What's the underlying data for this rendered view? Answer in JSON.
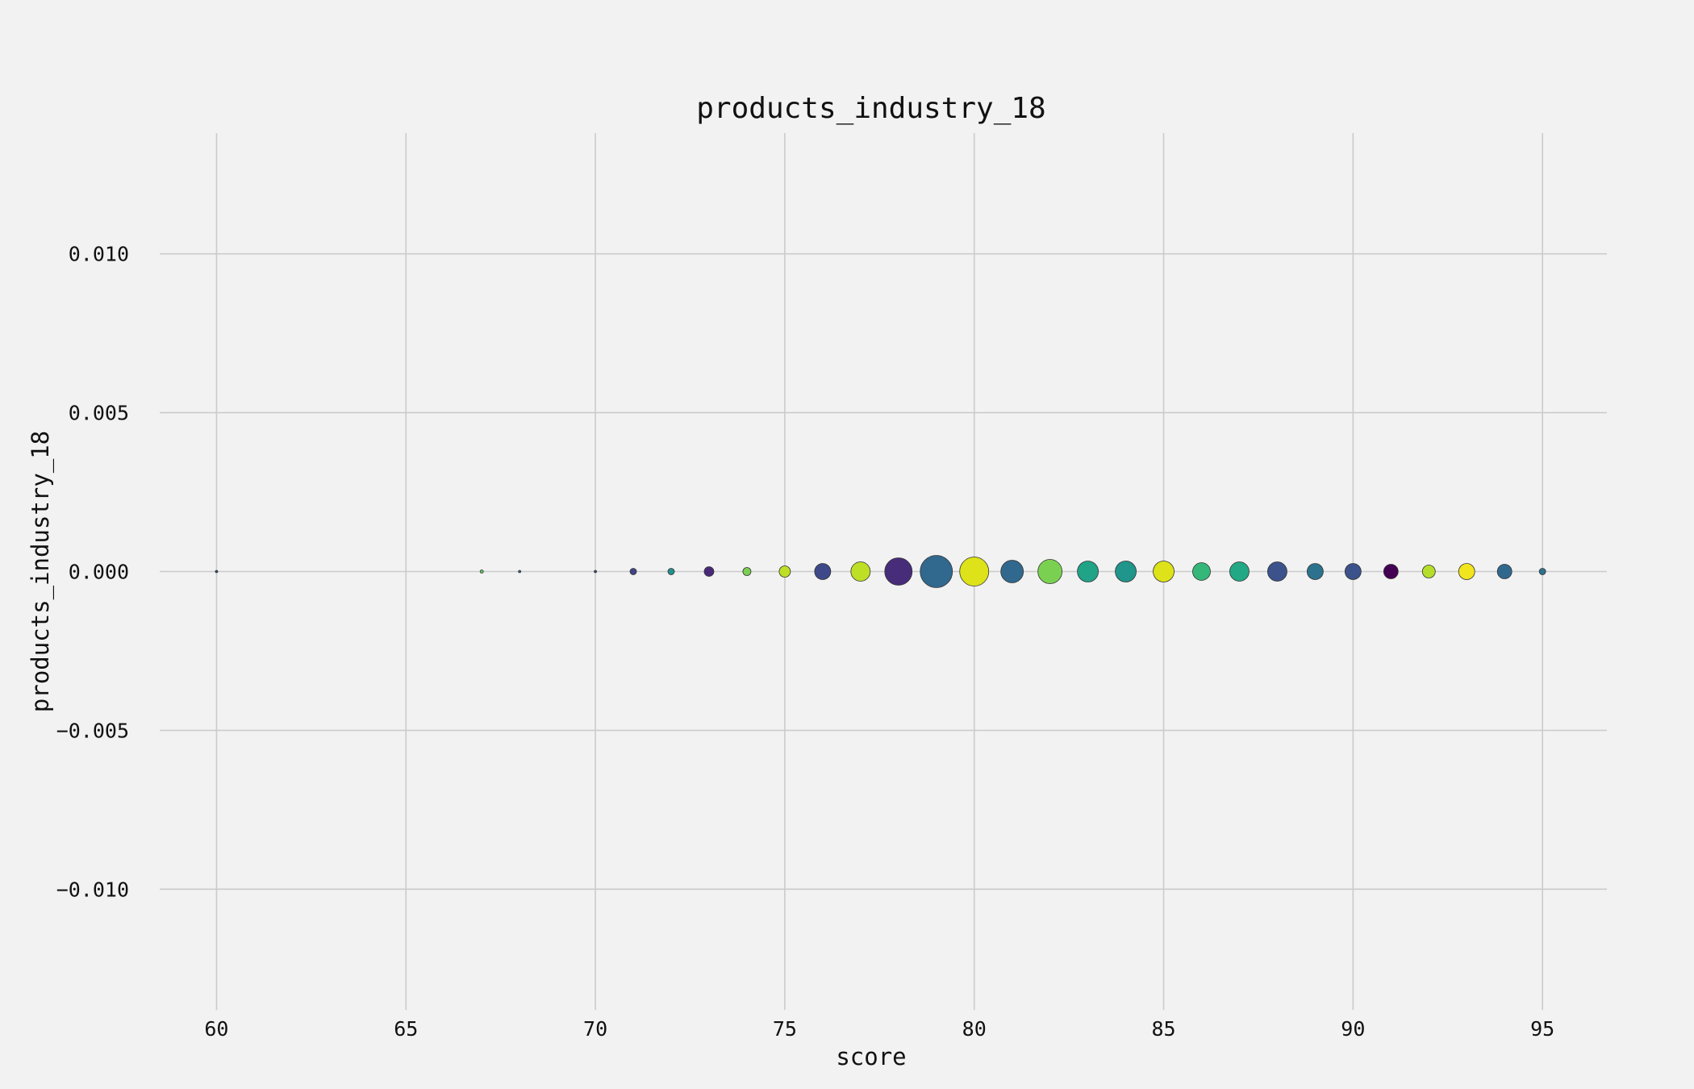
{
  "chart_data": {
    "type": "scatter",
    "title": "products_industry_18",
    "xlabel": "score",
    "ylabel": "products_industry_18",
    "xlim": [
      58.5,
      96.7
    ],
    "ylim": [
      -0.0138,
      0.0138
    ],
    "x_ticks": [
      60,
      65,
      70,
      75,
      80,
      85,
      90,
      95
    ],
    "x_tick_labels": [
      "60",
      "65",
      "70",
      "75",
      "80",
      "85",
      "90",
      "95"
    ],
    "y_ticks": [
      0.01,
      0.005,
      0.0,
      -0.005,
      -0.01
    ],
    "y_tick_labels": [
      "0.010",
      "0.005",
      "0.000",
      "−0.005",
      "−0.010"
    ],
    "grid": true,
    "background_color": "#f2f2f2",
    "colormap": "viridis",
    "series": [
      {
        "points": [
          {
            "x": 60,
            "y": 0,
            "size": 1,
            "color": "#3b528b"
          },
          {
            "x": 67,
            "y": 0,
            "size": 2,
            "color": "#5ec962"
          },
          {
            "x": 68,
            "y": 0,
            "size": 1,
            "color": "#31688e"
          },
          {
            "x": 70,
            "y": 0,
            "size": 1,
            "color": "#3b528b"
          },
          {
            "x": 71,
            "y": 0,
            "size": 4,
            "color": "#414487"
          },
          {
            "x": 72,
            "y": 0,
            "size": 4,
            "color": "#21918c"
          },
          {
            "x": 73,
            "y": 0,
            "size": 6,
            "color": "#482878"
          },
          {
            "x": 74,
            "y": 0,
            "size": 5,
            "color": "#7ad151"
          },
          {
            "x": 75,
            "y": 0,
            "size": 7,
            "color": "#bddf26"
          },
          {
            "x": 76,
            "y": 0,
            "size": 10,
            "color": "#3e4989"
          },
          {
            "x": 77,
            "y": 0,
            "size": 12,
            "color": "#bddf26"
          },
          {
            "x": 78,
            "y": 0,
            "size": 17,
            "color": "#472c7a"
          },
          {
            "x": 79,
            "y": 0,
            "size": 20,
            "color": "#31688e"
          },
          {
            "x": 80,
            "y": 0,
            "size": 18,
            "color": "#dde318"
          },
          {
            "x": 81,
            "y": 0,
            "size": 14,
            "color": "#31688e"
          },
          {
            "x": 82,
            "y": 0,
            "size": 15,
            "color": "#7ad151"
          },
          {
            "x": 83,
            "y": 0,
            "size": 13,
            "color": "#20a386"
          },
          {
            "x": 84,
            "y": 0,
            "size": 13,
            "color": "#1f958b"
          },
          {
            "x": 85,
            "y": 0,
            "size": 13,
            "color": "#dde318"
          },
          {
            "x": 86,
            "y": 0,
            "size": 11,
            "color": "#35b779"
          },
          {
            "x": 87,
            "y": 0,
            "size": 12,
            "color": "#22a884"
          },
          {
            "x": 88,
            "y": 0,
            "size": 12,
            "color": "#3b528b"
          },
          {
            "x": 89,
            "y": 0,
            "size": 10,
            "color": "#2c728e"
          },
          {
            "x": 90,
            "y": 0,
            "size": 10,
            "color": "#3b528b"
          },
          {
            "x": 91,
            "y": 0,
            "size": 9,
            "color": "#440154"
          },
          {
            "x": 92,
            "y": 0,
            "size": 8,
            "color": "#b5de2b"
          },
          {
            "x": 93,
            "y": 0,
            "size": 10,
            "color": "#f1e51d"
          },
          {
            "x": 94,
            "y": 0,
            "size": 9,
            "color": "#31688e"
          },
          {
            "x": 95,
            "y": 0,
            "size": 4,
            "color": "#2c728e"
          }
        ]
      }
    ]
  }
}
